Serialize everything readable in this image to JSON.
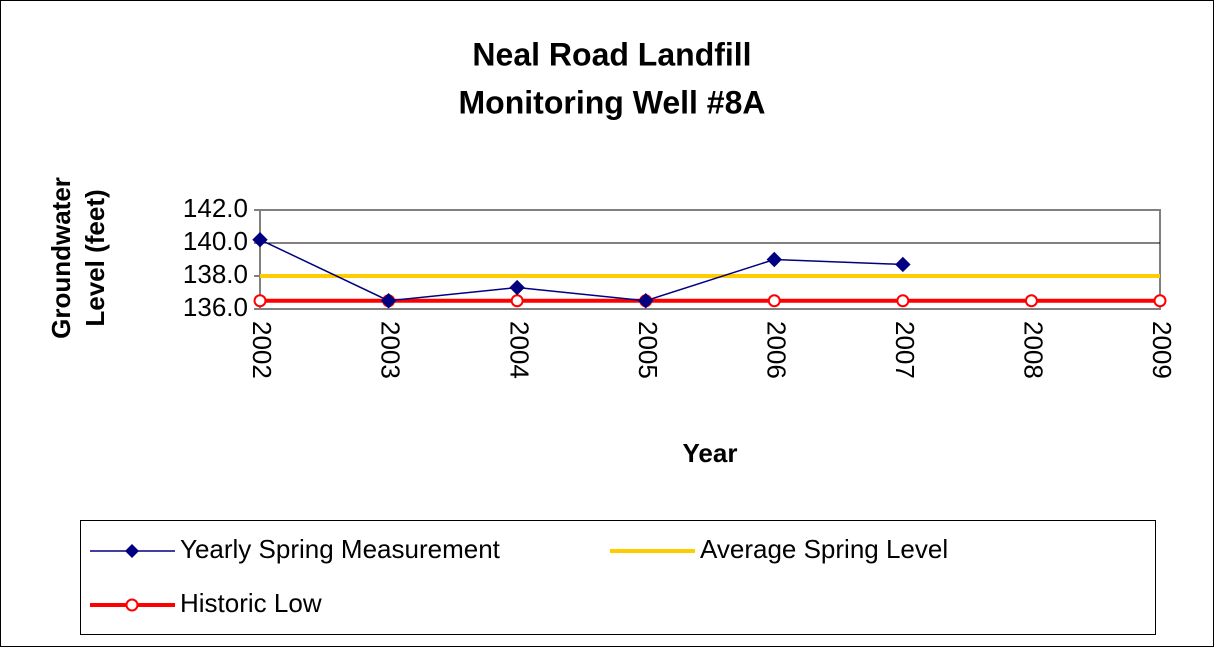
{
  "chart_data": {
    "type": "line",
    "title": [
      "Neal Road Landfill",
      "Monitoring Well #8A"
    ],
    "x_label": "Year",
    "y_label": [
      "Groundwater",
      "Level (feet)"
    ],
    "categories": [
      "2002",
      "2003",
      "2004",
      "2005",
      "2006",
      "2007",
      "2008",
      "2009"
    ],
    "series": [
      {
        "name": "Yearly Spring Measurement",
        "color": "#000080",
        "marker": "diamond",
        "values": [
          140.2,
          136.5,
          137.3,
          136.5,
          139.0,
          138.7,
          null,
          null
        ]
      },
      {
        "name": "Average Spring Level",
        "color": "#FFCC00",
        "marker": "none",
        "values": [
          138.0,
          138.0,
          138.0,
          138.0,
          138.0,
          138.0,
          138.0,
          138.0
        ]
      },
      {
        "name": "Historic Low",
        "color": "#FF0000",
        "marker": "circle",
        "values": [
          136.5,
          136.5,
          136.5,
          136.5,
          136.5,
          136.5,
          136.5,
          136.5
        ]
      }
    ],
    "ylim": [
      136,
      142
    ],
    "yticks": [
      {
        "value": 136,
        "label": "136.0"
      },
      {
        "value": 138,
        "label": "138.0"
      },
      {
        "value": 140,
        "label": "140.0"
      },
      {
        "value": 142,
        "label": "142.0"
      }
    ],
    "grid": true,
    "legend": "bottom"
  }
}
